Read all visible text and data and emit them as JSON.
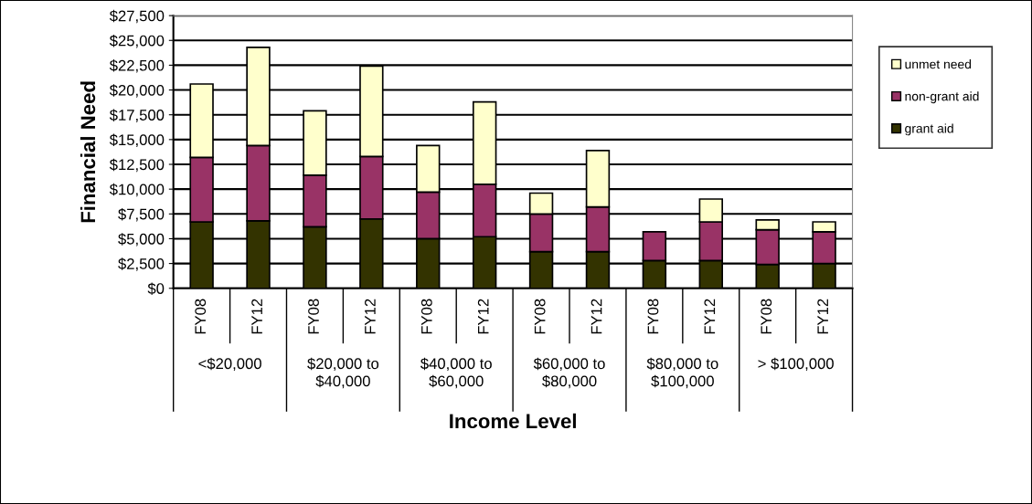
{
  "chart_data": {
    "type": "bar",
    "stacked": true,
    "categories": [
      "FY08",
      "FY12",
      "FY08",
      "FY12",
      "FY08",
      "FY12",
      "FY08",
      "FY12",
      "FY08",
      "FY12",
      "FY08",
      "FY12"
    ],
    "series": [
      {
        "name": "grant aid",
        "color": "#333300",
        "values": [
          6700,
          6800,
          6200,
          7000,
          5000,
          5200,
          3700,
          3700,
          2800,
          2800,
          2400,
          2500
        ]
      },
      {
        "name": "non-grant aid",
        "color": "#993366",
        "values": [
          6500,
          7600,
          5200,
          6300,
          4700,
          5300,
          3800,
          4500,
          2900,
          3900,
          3500,
          3200
        ]
      },
      {
        "name": "unmet need",
        "color": "#ffffcc",
        "values": [
          7400,
          9900,
          6500,
          9100,
          4700,
          8300,
          2100,
          5700,
          null,
          2300,
          1000,
          1000
        ]
      }
    ],
    "xlabel": "Income Level",
    "ylabel": "Financial Need",
    "annotations": [
      "<$20,000",
      "$20,000 to\n$40,000",
      "$40,000 to\n$60,000",
      "$60,000 to\n$80,000",
      "$80,000 to\n$100,000",
      "> $100,000"
    ],
    "ylim": [
      0,
      27500
    ],
    "yticks": [
      {
        "value": 0,
        "label": "$0"
      },
      {
        "value": 2500,
        "label": "$2,500"
      },
      {
        "value": 5000,
        "label": "$5,000"
      },
      {
        "value": 7500,
        "label": "$7,500"
      },
      {
        "value": 10000,
        "label": "$10,000"
      },
      {
        "value": 12500,
        "label": "$12,500"
      },
      {
        "value": 15000,
        "label": "$15,000"
      },
      {
        "value": 17500,
        "label": "$17,500"
      },
      {
        "value": 20000,
        "label": "$20,000"
      },
      {
        "value": 22500,
        "label": "$22,500"
      },
      {
        "value": 25000,
        "label": "$25,000"
      },
      {
        "value": 27500,
        "label": "$27,500"
      }
    ],
    "grid": "y",
    "legend": "right"
  }
}
